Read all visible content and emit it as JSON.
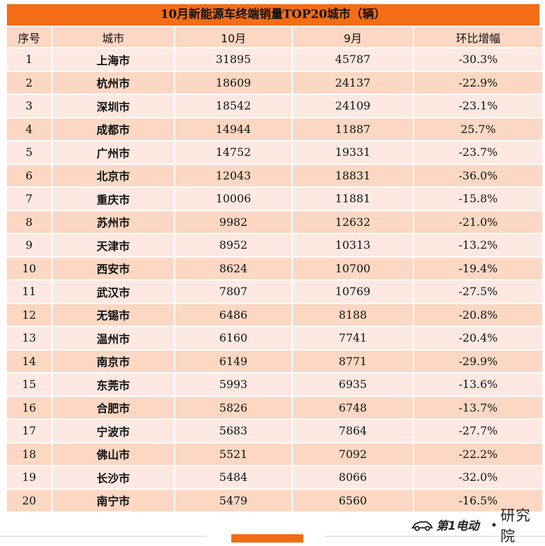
{
  "title": "10月新能源车终端销量TOP20城市（辆）",
  "headers": [
    "序号",
    "城市",
    "10月",
    "9月",
    "环比增幅"
  ],
  "rows": [
    [
      "1",
      "上海市",
      "31895",
      "45787",
      "-30.3%"
    ],
    [
      "2",
      "杭州市",
      "18609",
      "24137",
      "-22.9%"
    ],
    [
      "3",
      "深圳市",
      "18542",
      "24109",
      "-23.1%"
    ],
    [
      "4",
      "成都市",
      "14944",
      "11887",
      "25.7%"
    ],
    [
      "5",
      "广州市",
      "14752",
      "19331",
      "-23.7%"
    ],
    [
      "6",
      "北京市",
      "12043",
      "18831",
      "-36.0%"
    ],
    [
      "7",
      "重庆市",
      "10006",
      "11881",
      "-15.8%"
    ],
    [
      "8",
      "苏州市",
      "9982",
      "12632",
      "-21.0%"
    ],
    [
      "9",
      "天津市",
      "8952",
      "10313",
      "-13.2%"
    ],
    [
      "10",
      "西安市",
      "8624",
      "10700",
      "-19.4%"
    ],
    [
      "11",
      "武汉市",
      "7807",
      "10769",
      "-27.5%"
    ],
    [
      "12",
      "无锡市",
      "6486",
      "8188",
      "-20.8%"
    ],
    [
      "13",
      "温州市",
      "6160",
      "7741",
      "-20.4%"
    ],
    [
      "14",
      "南京市",
      "6149",
      "8771",
      "-29.9%"
    ],
    [
      "15",
      "东莞市",
      "5993",
      "6935",
      "-13.6%"
    ],
    [
      "16",
      "合肥市",
      "5826",
      "6748",
      "-13.7%"
    ],
    [
      "17",
      "宁波市",
      "5683",
      "7864",
      "-27.7%"
    ],
    [
      "18",
      "佛山市",
      "5521",
      "7092",
      "-22.2%"
    ],
    [
      "19",
      "长沙市",
      "5484",
      "8066",
      "-32.0%"
    ],
    [
      "20",
      "南宁市",
      "5479",
      "6560",
      "-16.5%"
    ]
  ],
  "logo": {
    "brand": "第1电动",
    "separator": "•",
    "suffix": "研究院"
  },
  "colors": {
    "accent": "#f26d16",
    "row_light": "#fde9e2",
    "row_dark": "#fbd7c4"
  }
}
